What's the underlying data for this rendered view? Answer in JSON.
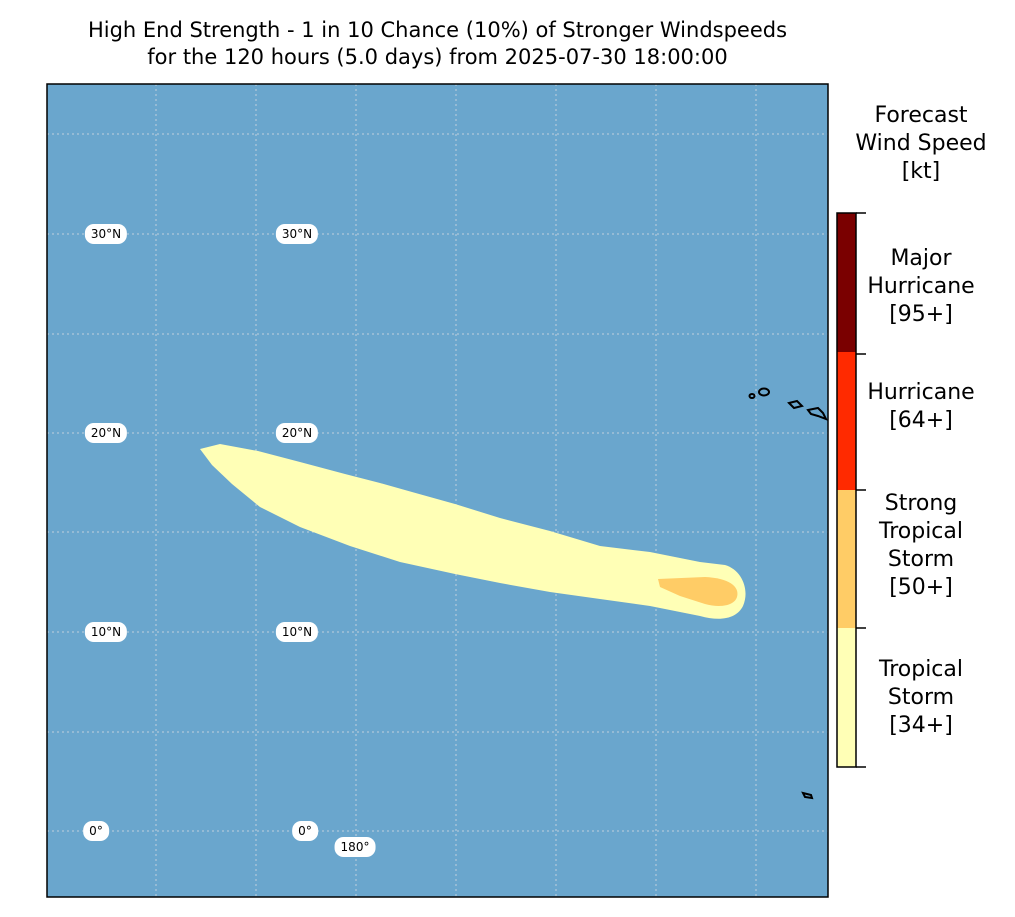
{
  "title": {
    "line1": "High End Strength - 1 in 10 Chance (10%) of Stronger Windspeeds",
    "line2": "for the 120 hours (5.0 days) from 2025-07-30 18:00:00"
  },
  "colors": {
    "ocean": "#6aa6cd",
    "tropical_storm": "#ffffb6",
    "strong_tropical_storm": "#ffcc66",
    "hurricane": "#ff2a00",
    "major_hurricane": "#7a0000",
    "grid": "#d0d8e0",
    "land_outline": "#000000"
  },
  "colorbar": {
    "title_lines": [
      "Forecast",
      "Wind Speed",
      "[kt]"
    ],
    "categories": [
      {
        "lines": [
          "Major",
          "Hurricane",
          "[95+]"
        ],
        "color": "#7a0000",
        "threshold_kt": 95
      },
      {
        "lines": [
          "Hurricane",
          "[64+]"
        ],
        "color": "#ff2a00",
        "threshold_kt": 64
      },
      {
        "lines": [
          "Strong",
          "Tropical",
          "Storm",
          "[50+]"
        ],
        "color": "#ffcc66",
        "threshold_kt": 50
      },
      {
        "lines": [
          "Tropical",
          "Storm",
          "[34+]"
        ],
        "color": "#ffffb6",
        "threshold_kt": 34
      }
    ]
  },
  "gridlabels": {
    "lat_col1": [
      "30°N",
      "20°N",
      "10°N",
      "0°"
    ],
    "lat_col2": [
      "30°N",
      "20°N",
      "10°N",
      "0°"
    ],
    "lon": [
      "180°"
    ]
  }
}
